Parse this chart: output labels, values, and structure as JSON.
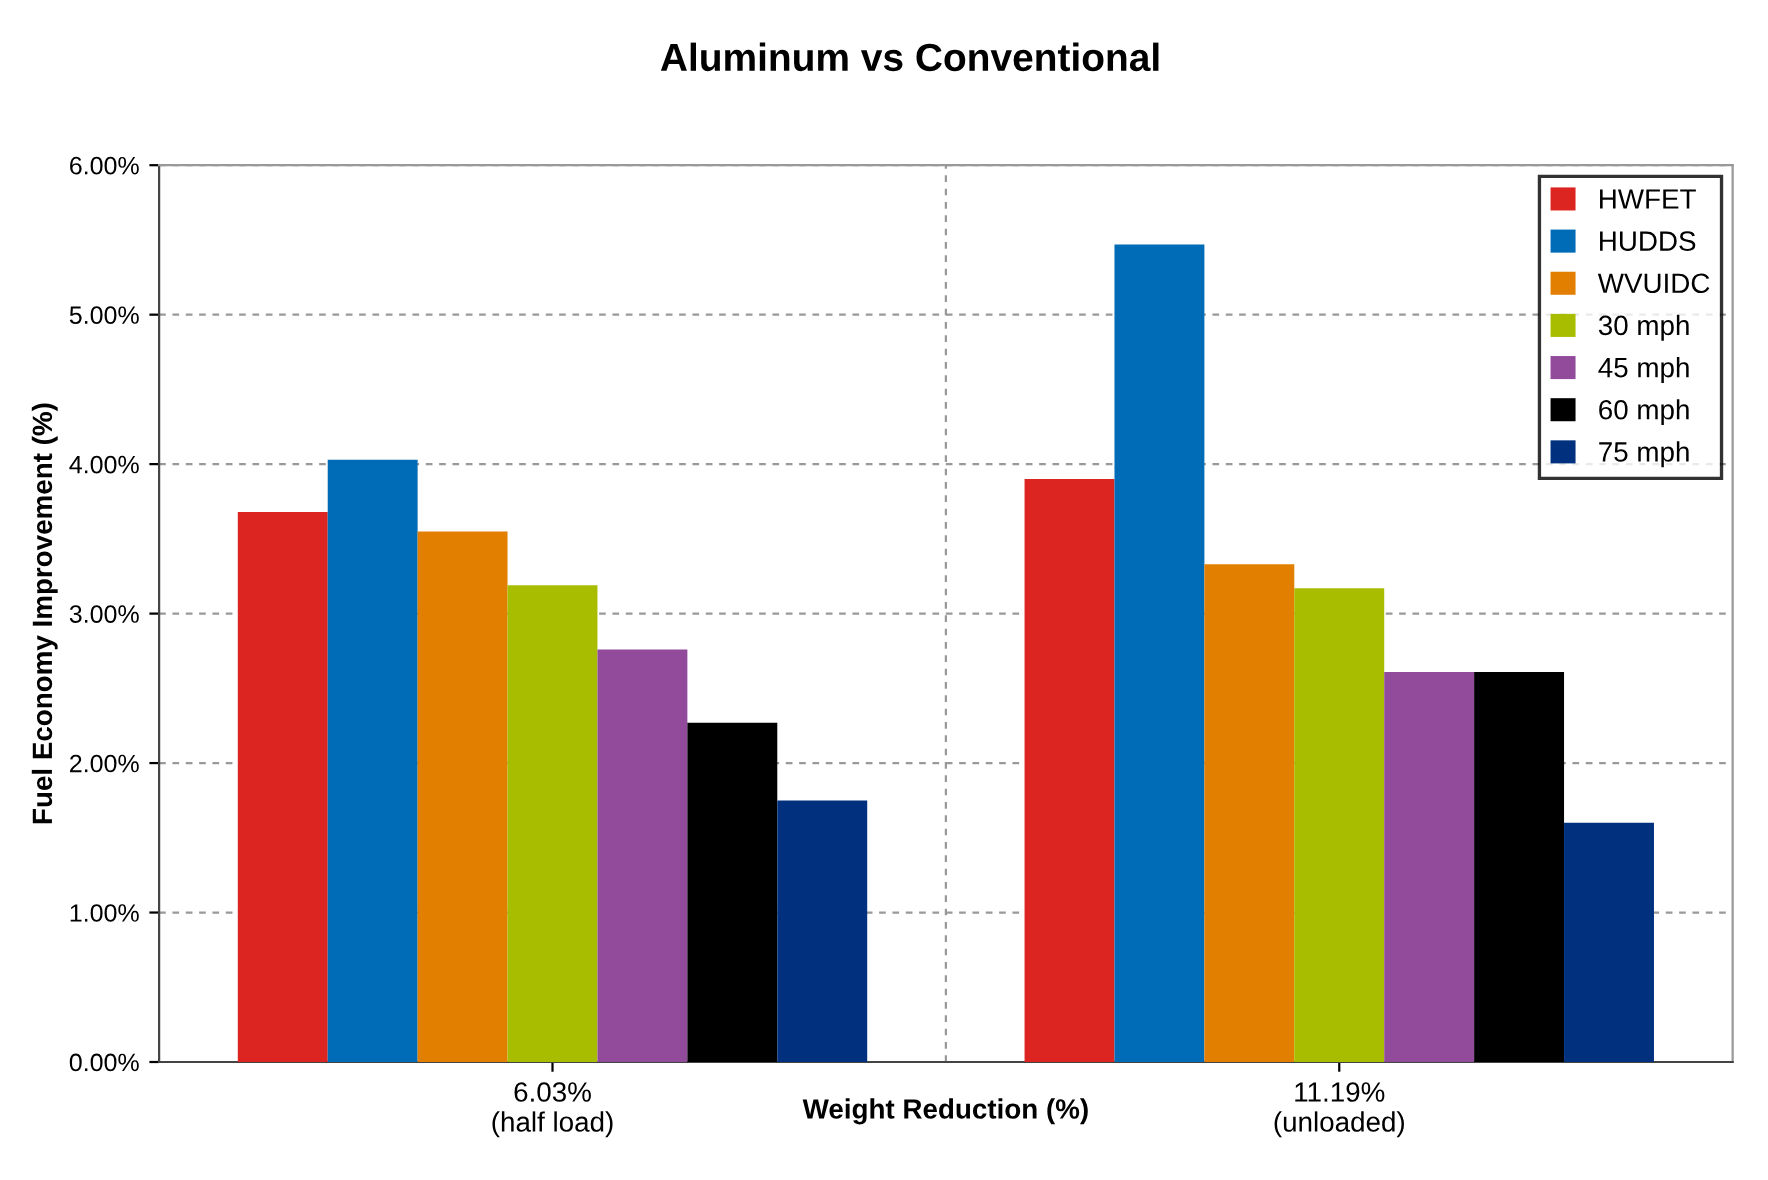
{
  "chart_data": {
    "type": "bar",
    "title": "Aluminum vs Conventional",
    "xlabel": "Weight Reduction (%)",
    "ylabel": "Fuel Economy Improvement (%)",
    "categories": [
      "6.03%\n(half load)",
      "11.19%\n(unloaded)"
    ],
    "series": [
      {
        "name": "HWFET",
        "color": "#dc2520",
        "values": [
          3.68,
          3.9
        ]
      },
      {
        "name": "HUDDS",
        "color": "#006bb6",
        "values": [
          4.03,
          5.47
        ]
      },
      {
        "name": "WVUIDC",
        "color": "#e27e00",
        "values": [
          3.55,
          3.33
        ]
      },
      {
        "name": "30 mph",
        "color": "#a9bd00",
        "values": [
          3.19,
          3.17
        ]
      },
      {
        "name": "45 mph",
        "color": "#924a9b",
        "values": [
          2.76,
          2.61
        ]
      },
      {
        "name": "60 mph",
        "color": "#000000",
        "values": [
          2.27,
          2.61
        ]
      },
      {
        "name": "75 mph",
        "color": "#00307e",
        "values": [
          1.75,
          1.6
        ]
      }
    ],
    "ylim": [
      0,
      6
    ],
    "yticks": [
      {
        "value": 0,
        "label": "0.00%"
      },
      {
        "value": 1,
        "label": "1.00%"
      },
      {
        "value": 2,
        "label": "2.00%"
      },
      {
        "value": 3,
        "label": "3.00%"
      },
      {
        "value": 4,
        "label": "4.00%"
      },
      {
        "value": 5,
        "label": "5.00%"
      },
      {
        "value": 6,
        "label": "6.00%"
      }
    ],
    "grid": true,
    "legend": "top right"
  }
}
